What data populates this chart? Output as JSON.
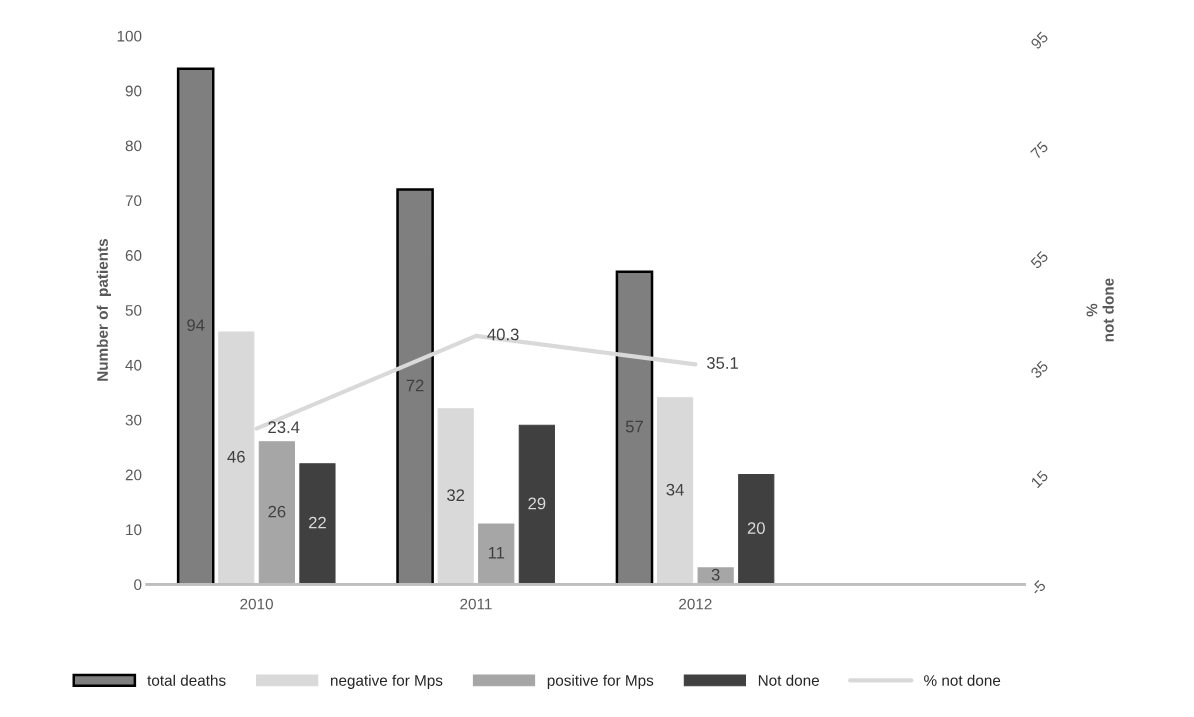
{
  "chart_data": {
    "type": "bar",
    "categories": [
      "2010",
      "2011",
      "2012",
      null
    ],
    "ylabel": "Number of  patients",
    "y2label": "%\nnot done",
    "series": [
      {
        "name": "total deaths",
        "color": "#7f7f7f",
        "values": [
          94,
          72,
          57,
          null
        ]
      },
      {
        "name": "negative for Mps",
        "color": "#d9d9d9",
        "values": [
          46,
          32,
          34,
          null
        ]
      },
      {
        "name": "positive for Mps",
        "color": "#a6a6a6",
        "values": [
          26,
          11,
          3,
          null
        ]
      },
      {
        "name": "Not done",
        "color": "#404040",
        "values": [
          22,
          29,
          20,
          null
        ]
      },
      {
        "name": "% not done",
        "type": "line",
        "axis": "y2",
        "color": "#d9d9d9",
        "values": [
          23.4,
          40.3,
          35.1,
          null
        ]
      }
    ],
    "ylim": [
      0,
      100
    ],
    "yticks": [
      0,
      10,
      20,
      30,
      40,
      50,
      60,
      70,
      80,
      90,
      100
    ],
    "y2lim": [
      -5,
      95
    ],
    "y2ticks": [
      -5,
      15,
      35,
      55,
      75,
      95
    ],
    "data_labels": true,
    "legend": "bottom",
    "grid": false
  }
}
